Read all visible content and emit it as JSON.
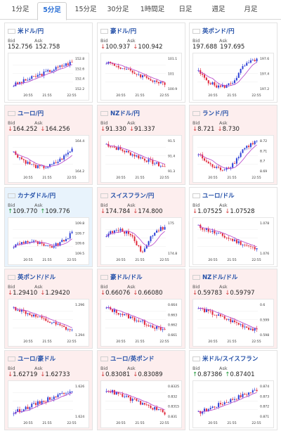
{
  "tabs": [
    {
      "label": "1分足",
      "active": false
    },
    {
      "label": "5分足",
      "active": true
    },
    {
      "label": "15分足",
      "active": false
    },
    {
      "label": "30分足",
      "active": false
    },
    {
      "label": "1時間足",
      "active": false
    },
    {
      "label": "日足",
      "active": false
    },
    {
      "label": "週足",
      "active": false
    },
    {
      "label": "月足",
      "active": false
    }
  ],
  "bid_label": "Bid",
  "ask_label": "Ask",
  "time_labels": [
    "20:55",
    "21:55",
    "22:55"
  ],
  "colors": {
    "bull": "#2c3fd6",
    "bear": "#e0273a",
    "ma": "#b540c8",
    "up_arrow": "#1f9a3a",
    "down_arrow": "#d23b3b"
  },
  "cards": [
    {
      "name": "米ドル/円",
      "flag": "us",
      "trend": "flat",
      "dir": "none",
      "bid": "152.756",
      "ask": "152.758",
      "ticks": [
        "152.8",
        "152.6",
        "152.4",
        "152.2"
      ],
      "pattern": "rise"
    },
    {
      "name": "豪ドル/円",
      "flag": "au",
      "trend": "flat",
      "dir": "down",
      "bid": "100.937",
      "ask": "100.942",
      "ticks": [
        "101.1",
        "101",
        "100.9"
      ],
      "pattern": "fall"
    },
    {
      "name": "英ポンド/円",
      "flag": "gb",
      "trend": "flat",
      "dir": "none",
      "bid": "197.688",
      "ask": "197.695",
      "ticks": [
        "197.6",
        "197.4",
        "197.2"
      ],
      "pattern": "dipup"
    },
    {
      "name": "ユーロ/円",
      "flag": "eu",
      "trend": "down",
      "dir": "down",
      "bid": "164.252",
      "ask": "164.256",
      "ticks": [
        "164.4",
        "164.2"
      ],
      "pattern": "dip"
    },
    {
      "name": "NZドル/円",
      "flag": "nz",
      "trend": "down",
      "dir": "down",
      "bid": "91.330",
      "ask": "91.337",
      "ticks": [
        "91.5",
        "91.4",
        "91.3"
      ],
      "pattern": "fall"
    },
    {
      "name": "ランド/円",
      "flag": "za",
      "trend": "down",
      "dir": "down",
      "bid": "8.721",
      "ask": "8.730",
      "ticks": [
        "8.72",
        "8.71",
        "8.7",
        "8.69"
      ],
      "pattern": "dipup"
    },
    {
      "name": "カナダドル/円",
      "flag": "ca",
      "trend": "up",
      "dir": "up",
      "bid": "109.770",
      "ask": "109.776",
      "ticks": [
        "109.8",
        "109.7",
        "109.6",
        "109.5"
      ],
      "pattern": "riseend"
    },
    {
      "name": "スイスフラン/円",
      "flag": "ch",
      "trend": "down",
      "dir": "down",
      "bid": "174.784",
      "ask": "174.800",
      "ticks": [
        "175",
        "174.8"
      ],
      "pattern": "dipmid"
    },
    {
      "name": "ユーロ/ドル",
      "flag": "eu",
      "trend": "flat",
      "dir": "down",
      "bid": "1.07525",
      "ask": "1.07528",
      "ticks": [
        "1.078",
        "1.076"
      ],
      "pattern": "fall"
    },
    {
      "name": "英ポンド/ドル",
      "flag": "gb",
      "trend": "down",
      "dir": "down",
      "bid": "1.29410",
      "ask": "1.29420",
      "ticks": [
        "1.296",
        "1.294"
      ],
      "pattern": "fall"
    },
    {
      "name": "豪ドル/ドル",
      "flag": "au",
      "trend": "down",
      "dir": "down",
      "bid": "0.66076",
      "ask": "0.66080",
      "ticks": [
        "0.664",
        "0.663",
        "0.662",
        "0.661"
      ],
      "pattern": "fall"
    },
    {
      "name": "NZドル/ドル",
      "flag": "nz",
      "trend": "down",
      "dir": "down",
      "bid": "0.59783",
      "ask": "0.59797",
      "ticks": [
        "0.6",
        "0.599",
        "0.598"
      ],
      "pattern": "fall"
    },
    {
      "name": "ユーロ/豪ドル",
      "flag": "eu",
      "trend": "down",
      "dir": "down",
      "bid": "1.62719",
      "ask": "1.62733",
      "ticks": [
        "1.626",
        "1.624"
      ],
      "pattern": "rise"
    },
    {
      "name": "ユーロ/英ポンド",
      "flag": "eu",
      "trend": "down",
      "dir": "down",
      "bid": "0.83081",
      "ask": "0.83089",
      "ticks": [
        "0.8325",
        "0.832",
        "0.8315",
        "0.831"
      ],
      "pattern": "fall"
    },
    {
      "name": "米ドル/スイスフラン",
      "flag": "us",
      "trend": "flat",
      "dir": "up",
      "bid": "0.87386",
      "ask": "0.87401",
      "ticks": [
        "0.874",
        "0.873",
        "0.872",
        "0.871"
      ],
      "pattern": "rise"
    }
  ]
}
